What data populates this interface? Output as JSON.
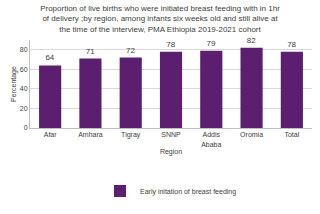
{
  "chart_data": {
    "type": "bar",
    "title": "Proportion of live births who were initiated breast feeding with in 1hr of delivery ;by region, among infants six weeks old and still alive at the time of the interview, PMA Ethiopia 2019-2021 cohort",
    "x_label": "Region",
    "y_label": "Percentage",
    "categories": [
      "Afar",
      "Amhara",
      "Tigray",
      "SNNP",
      "Addis Ababa",
      "Oromia",
      "Total"
    ],
    "series": [
      {
        "name": "Early initation of breast feeding",
        "color": "#5c1e6e",
        "values": [
          64,
          71,
          72,
          78,
          79,
          82,
          78
        ]
      }
    ],
    "ylim": [
      0,
      90
    ],
    "yticks": [
      0,
      20,
      40,
      60,
      80
    ],
    "grid": true,
    "data_labels": true,
    "legend": "bottom"
  }
}
